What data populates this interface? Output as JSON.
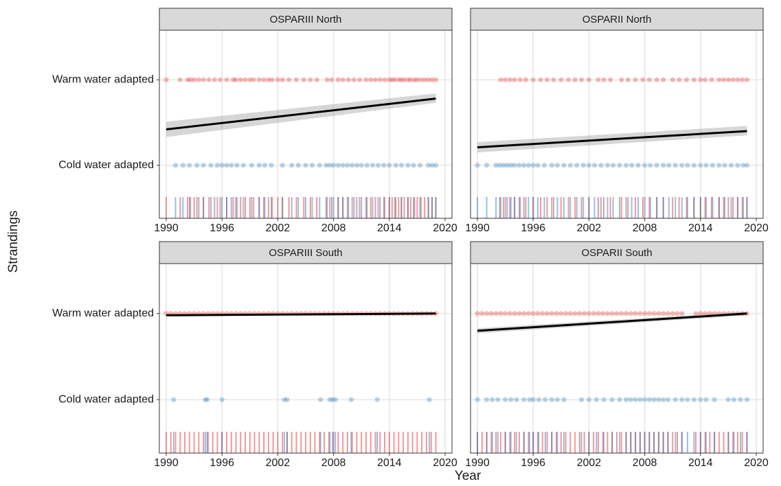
{
  "xlabel": "Year",
  "ylabel": "Strandings",
  "chart_data": [
    {
      "type": "scatter",
      "title": "OSPARIII North",
      "xlim": [
        1989.26,
        2020.74
      ],
      "xticks": [
        1990,
        1996,
        2002,
        2008,
        2014,
        2020
      ],
      "ylim": [
        -0.62,
        1.58
      ],
      "yticks": [
        {
          "value": 0,
          "label": "Cold water adapted"
        },
        {
          "value": 1,
          "label": "Warm water adapted"
        }
      ],
      "series": [
        {
          "name": "Warm water adapted",
          "color": "#e31a1c",
          "y_level": 1,
          "x": [
            1990,
            1991.5,
            1992.3,
            1992.6,
            1993,
            1993.5,
            1994,
            1994.6,
            1995.2,
            1995.8,
            1996.5,
            1997.2,
            1997.5,
            1998,
            1998.5,
            1999,
            1999.4,
            2000,
            2000.5,
            2001,
            2001.4,
            2002,
            2002.5,
            2003.2,
            2004,
            2004.8,
            2005.5,
            2006.2,
            2007.3,
            2007.8,
            2008.5,
            2009,
            2009.6,
            2010.2,
            2010.8,
            2011.5,
            2012,
            2012.5,
            2013,
            2013.5,
            2014,
            2014.3,
            2014.6,
            2015,
            2015.3,
            2015.6,
            2016,
            2016.3,
            2016.7,
            2017,
            2017.4,
            2017.8,
            2018.2,
            2018.6,
            2019
          ]
        },
        {
          "name": "Cold water adapted",
          "color": "#1f6fb4",
          "y_level": 0,
          "x": [
            1991,
            1991.8,
            1992.5,
            1993.3,
            1994,
            1994.8,
            1995.5,
            1996,
            1996.5,
            1997,
            1997.6,
            1998.3,
            1999.2,
            2000,
            2000.6,
            2001.3,
            2002.5,
            2003.5,
            2004.2,
            2005,
            2005.7,
            2006.5,
            2007.2,
            2007.6,
            2008,
            2008.5,
            2009,
            2009.5,
            2010,
            2010.5,
            2011,
            2011.6,
            2012.2,
            2012.8,
            2013.4,
            2014,
            2014.7,
            2015.3,
            2016,
            2016.6,
            2017.3,
            2018.2,
            2018.6,
            2019
          ]
        }
      ],
      "trend": {
        "color": "#000000",
        "x": [
          1990,
          2019
        ],
        "values": [
          0.42,
          0.78
        ],
        "ci_lower": [
          0.33,
          0.73
        ],
        "ci_upper": [
          0.51,
          0.84
        ]
      }
    },
    {
      "type": "scatter",
      "title": "OSPARII North",
      "xlim": [
        1989.26,
        2020.74
      ],
      "xticks": [
        1990,
        1996,
        2002,
        2008,
        2014,
        2020
      ],
      "ylim": [
        -0.62,
        1.58
      ],
      "yticks": [
        {
          "value": 0,
          "label": "Cold water adapted"
        },
        {
          "value": 1,
          "label": "Warm water adapted"
        }
      ],
      "series": [
        {
          "name": "Warm water adapted",
          "color": "#e31a1c",
          "y_level": 1,
          "x": [
            1992.5,
            1993,
            1993.5,
            1994,
            1994.6,
            1995.2,
            1996,
            1996.8,
            1997.5,
            1998.2,
            1999,
            1999.8,
            2000.5,
            2001.2,
            2002,
            2003,
            2003.6,
            2004.3,
            2005.5,
            2006.2,
            2007,
            2007.8,
            2008.5,
            2009.3,
            2010,
            2011,
            2011.7,
            2012.5,
            2013.3,
            2014,
            2014.5,
            2015.2,
            2016,
            2016.5,
            2017,
            2017.5,
            2018,
            2018.5,
            2019
          ]
        },
        {
          "name": "Cold water adapted",
          "color": "#1f6fb4",
          "y_level": 0,
          "x": [
            1990,
            1991,
            1992,
            1992.4,
            1992.8,
            1993.2,
            1993.6,
            1994,
            1994.5,
            1995,
            1995.5,
            1996,
            1996.5,
            1997.2,
            1998,
            1998.6,
            1999.3,
            2000,
            2000.7,
            2001.4,
            2002,
            2002.6,
            2003.3,
            2004,
            2004.6,
            2005.3,
            2006,
            2006.6,
            2007.3,
            2008,
            2008.6,
            2009.3,
            2010,
            2010.6,
            2011.3,
            2012,
            2012.6,
            2013.3,
            2014,
            2014.6,
            2015.3,
            2016,
            2016.6,
            2017.3,
            2018,
            2018.6,
            2019
          ]
        }
      ],
      "trend": {
        "color": "#000000",
        "x": [
          1990,
          2019
        ],
        "values": [
          0.21,
          0.4
        ],
        "ci_lower": [
          0.15,
          0.35
        ],
        "ci_upper": [
          0.27,
          0.46
        ]
      }
    },
    {
      "type": "scatter",
      "title": "OSPARIII South",
      "xlim": [
        1989.26,
        2020.74
      ],
      "xticks": [
        1990,
        1996,
        2002,
        2008,
        2014,
        2020
      ],
      "ylim": [
        -0.62,
        1.58
      ],
      "yticks": [
        {
          "value": 0,
          "label": "Cold water adapted"
        },
        {
          "value": 1,
          "label": "Warm water adapted"
        }
      ],
      "series": [
        {
          "name": "Warm water adapted",
          "color": "#e31a1c",
          "y_level": 1,
          "x": [
            1990,
            1990.5,
            1991,
            1991.5,
            1992,
            1992.5,
            1993,
            1993.5,
            1994,
            1994.5,
            1995,
            1995.5,
            1996,
            1996.5,
            1997,
            1997.5,
            1998,
            1998.5,
            1999,
            1999.5,
            2000,
            2000.5,
            2001,
            2001.5,
            2002,
            2002.5,
            2003,
            2003.5,
            2004,
            2004.5,
            2005,
            2005.5,
            2006,
            2006.5,
            2007,
            2007.5,
            2008,
            2008.5,
            2009,
            2009.5,
            2010,
            2010.5,
            2011,
            2011.5,
            2012,
            2012.5,
            2013,
            2013.5,
            2014,
            2014.5,
            2015,
            2015.5,
            2016,
            2016.5,
            2017,
            2017.5,
            2018,
            2018.5,
            2019
          ]
        },
        {
          "name": "Cold water adapted",
          "color": "#1f6fb4",
          "y_level": 0,
          "x": [
            1990.8,
            1994.2,
            1994.4,
            1996,
            2002.7,
            2003,
            2006.6,
            2007.6,
            2007.9,
            2008.2,
            2009.9,
            2012.7,
            2018.3
          ]
        }
      ],
      "trend": {
        "color": "#000000",
        "x": [
          1990,
          2019
        ],
        "values": [
          0.98,
          1.0
        ],
        "ci_lower": [
          0.97,
          0.99
        ],
        "ci_upper": [
          0.99,
          1.01
        ]
      }
    },
    {
      "type": "scatter",
      "title": "OSPARII South",
      "xlim": [
        1989.26,
        2020.74
      ],
      "xticks": [
        1990,
        1996,
        2002,
        2008,
        2014,
        2020
      ],
      "ylim": [
        -0.62,
        1.58
      ],
      "yticks": [
        {
          "value": 0,
          "label": "Cold water adapted"
        },
        {
          "value": 1,
          "label": "Warm water adapted"
        }
      ],
      "series": [
        {
          "name": "Warm water adapted",
          "color": "#e31a1c",
          "y_level": 1,
          "x": [
            1990,
            1990.5,
            1991,
            1991.5,
            1992,
            1992.5,
            1993,
            1993.5,
            1994,
            1994.5,
            1995,
            1995.5,
            1996,
            1996.5,
            1997,
            1997.5,
            1998,
            1998.5,
            1999,
            1999.5,
            2000,
            2000.5,
            2001,
            2001.5,
            2002,
            2002.5,
            2003,
            2003.5,
            2004,
            2004.5,
            2005,
            2005.5,
            2006,
            2006.5,
            2007,
            2007.5,
            2008,
            2008.5,
            2009,
            2009.5,
            2010,
            2010.5,
            2011,
            2011.5,
            2012,
            2013.5,
            2014,
            2014.5,
            2015,
            2015.5,
            2016,
            2016.5,
            2017,
            2017.5,
            2018,
            2018.5,
            2019
          ]
        },
        {
          "name": "Cold water adapted",
          "color": "#1f6fb4",
          "y_level": 0,
          "x": [
            1990,
            1991,
            1991.6,
            1992.2,
            1993,
            1993.6,
            1994.2,
            1995,
            1995.6,
            1996,
            1996.6,
            1997.3,
            1998,
            1998.6,
            1999.3,
            2001.2,
            2002,
            2002.8,
            2003.6,
            2004.5,
            2005.3,
            2006,
            2006.5,
            2007,
            2007.5,
            2008,
            2008.5,
            2009,
            2009.5,
            2010,
            2010.5,
            2011.3,
            2012,
            2012.6,
            2013.3,
            2014,
            2014.6,
            2015.5,
            2017,
            2017.6,
            2018.3,
            2019
          ]
        }
      ],
      "trend": {
        "color": "#000000",
        "x": [
          1990,
          2019
        ],
        "values": [
          0.8,
          1.0
        ],
        "ci_lower": [
          0.77,
          0.98
        ],
        "ci_upper": [
          0.83,
          1.02
        ]
      }
    }
  ]
}
